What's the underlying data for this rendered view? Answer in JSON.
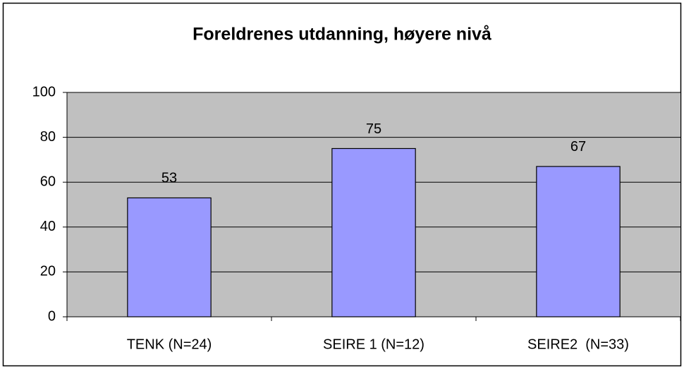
{
  "chart_data": {
    "type": "bar",
    "title": "Foreldrenes utdanning, høyere nivå",
    "categories": [
      "TENK (N=24)",
      "SEIRE 1 (N=12)",
      "SEIRE2  (N=33)"
    ],
    "values": [
      53,
      75,
      67
    ],
    "color": "#9999ff",
    "ylim": [
      0,
      100
    ],
    "yticks": [
      0,
      20,
      40,
      60,
      80,
      100
    ],
    "grid": true
  }
}
